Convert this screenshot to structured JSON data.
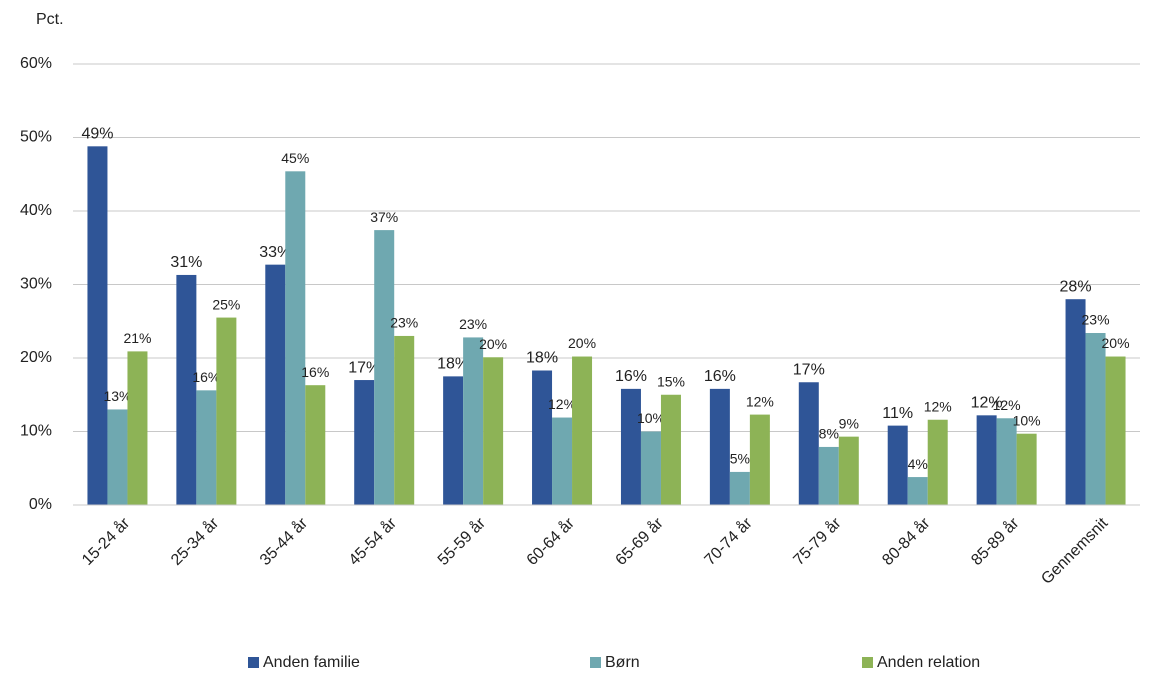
{
  "chart_data": {
    "type": "bar",
    "y_label": "Pct.",
    "categories": [
      "15-24 år",
      "25-34 år",
      "35-44 år",
      "45-54 år",
      "55-59 år",
      "60-64 år",
      "65-69 år",
      "70-74 år",
      "75-79 år",
      "80-84 år",
      "85-89 år",
      "Gennemsnit"
    ],
    "series": [
      {
        "name": "Anden familie",
        "color": "#2f5597",
        "values": [
          48.8,
          31.3,
          32.7,
          17.0,
          17.5,
          18.3,
          15.8,
          15.8,
          16.7,
          10.8,
          12.2,
          28.0
        ],
        "value_labels": [
          "49%",
          "31%",
          "33%",
          "17%",
          "18%",
          "18%",
          "16%",
          "16%",
          "17%",
          "11%",
          "12%",
          "28%"
        ]
      },
      {
        "name": "Børn",
        "color": "#6fa8b0",
        "values": [
          13.0,
          15.6,
          45.4,
          37.4,
          22.8,
          11.9,
          10.0,
          4.5,
          7.9,
          3.8,
          11.8,
          23.4
        ],
        "value_labels": [
          "13%",
          "16%",
          "45%",
          "37%",
          "23%",
          "12%",
          "10%",
          "5%",
          "8%",
          "4%",
          "12%",
          "23%"
        ]
      },
      {
        "name": "Anden relation",
        "color": "#8db356",
        "values": [
          20.9,
          25.5,
          16.3,
          23.0,
          20.1,
          20.2,
          15.0,
          12.3,
          9.3,
          11.6,
          9.7,
          20.2
        ],
        "value_labels": [
          "21%",
          "25%",
          "16%",
          "23%",
          "20%",
          "20%",
          "15%",
          "12%",
          "9%",
          "12%",
          "10%",
          "20%"
        ]
      }
    ],
    "ylim": [
      0,
      60
    ],
    "yticks": [
      {
        "value": 0,
        "label": "0%"
      },
      {
        "value": 10,
        "label": "10%"
      },
      {
        "value": 20,
        "label": "20%"
      },
      {
        "value": 30,
        "label": "30%"
      },
      {
        "value": 40,
        "label": "40%"
      },
      {
        "value": 50,
        "label": "50%"
      },
      {
        "value": 60,
        "label": "60%"
      }
    ],
    "grid": true,
    "legend": "bottom"
  }
}
